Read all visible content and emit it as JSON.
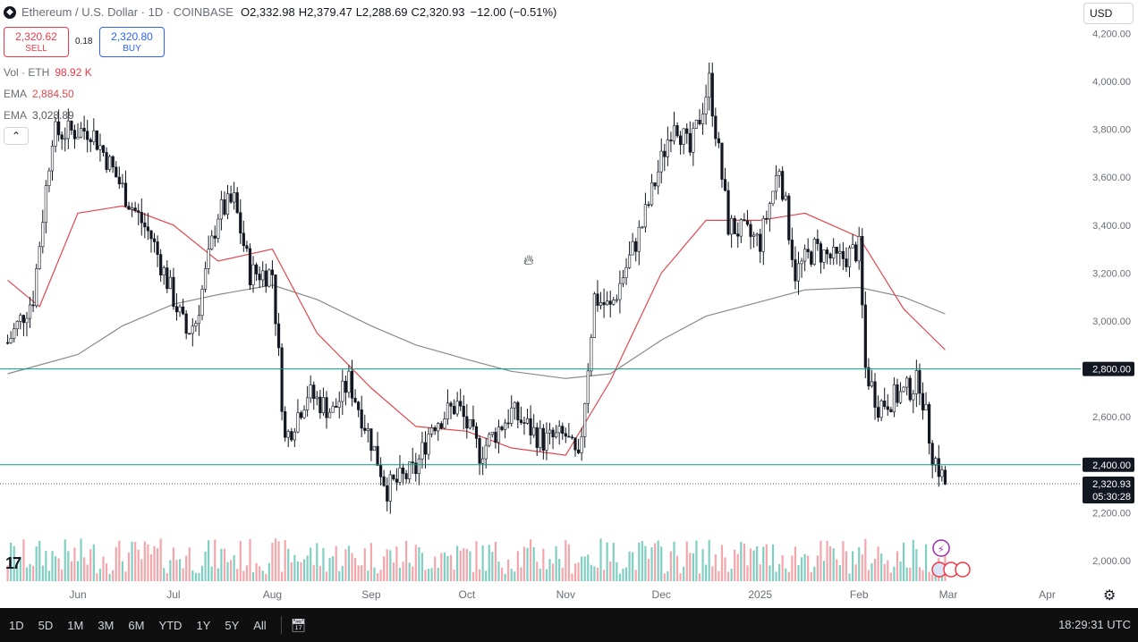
{
  "legend": {
    "title": "Ethereum / U.S. Dollar · 1D · COINBASE",
    "coin_icon": "ethereum-icon",
    "o_label": "O",
    "o": "2,332.98",
    "h_label": "H",
    "h": "2,379.47",
    "l_label": "L",
    "l": "2,288.69",
    "c_label": "C",
    "c": "2,320.93",
    "change": "−12.00 (−0.51%)"
  },
  "trade": {
    "sell_price": "2,320.62",
    "sell_label": "SELL",
    "spread": "0.18",
    "buy_price": "2,320.80",
    "buy_label": "BUY"
  },
  "indicators": {
    "vol_label": "Vol · ETH",
    "vol_value": "98.92 K",
    "ema1_label": "EMA",
    "ema1_value": "2,884.50",
    "ema2_label": "EMA",
    "ema2_value": "3,028.89",
    "collapse_label": "⌃"
  },
  "currency": "USD",
  "price_axis": {
    "ticks": [
      "4,200.00",
      "4,000.00",
      "3,800.00",
      "3,600.00",
      "3,400.00",
      "3,200.00",
      "3,000.00",
      "2,800.00",
      "2,600.00",
      "2,400.00",
      "2,200.00",
      "2,000.00"
    ]
  },
  "time_axis": {
    "labels": [
      "Jun",
      "Jul",
      "Aug",
      "Sep",
      "Oct",
      "Nov",
      "Dec",
      "2025",
      "Feb",
      "Mar",
      "Apr"
    ]
  },
  "price_labels": {
    "line1": "2,800.00",
    "line2": "2,400.00",
    "last": "2,320.93",
    "countdown": "05:30:28"
  },
  "colors": {
    "up": "#131722",
    "down": "#131722",
    "hline": "#089981",
    "ema_fast": "#e0484f",
    "ema_slow": "#8a8a8a",
    "vol_up": "#7fcfc3",
    "vol_down": "#f4a6ab",
    "label_bg": "#131722"
  },
  "bottom": {
    "timeframes": [
      "1D",
      "5D",
      "1M",
      "3M",
      "6M",
      "YTD",
      "1Y",
      "5Y",
      "All"
    ],
    "calendar_icon": "calendar-range-icon",
    "clock": "18:29:31 UTC"
  },
  "chart_data": {
    "type": "candlestick",
    "title": "Ethereum / U.S. Dollar · 1D · COINBASE",
    "xlabel": "",
    "ylabel": "",
    "ylim": [
      1930,
      4270
    ],
    "grid": false,
    "horizontal_levels": [
      2800,
      2400
    ],
    "last_price": 2320.93,
    "ema_fast": {
      "name": "EMA",
      "points": [
        [
          "2024-05-10",
          3170
        ],
        [
          "2024-05-20",
          3060
        ],
        [
          "2024-06-01",
          3450
        ],
        [
          "2024-06-15",
          3480
        ],
        [
          "2024-07-01",
          3400
        ],
        [
          "2024-07-15",
          3250
        ],
        [
          "2024-08-01",
          3300
        ],
        [
          "2024-08-15",
          2950
        ],
        [
          "2024-09-01",
          2720
        ],
        [
          "2024-09-15",
          2560
        ],
        [
          "2024-10-01",
          2540
        ],
        [
          "2024-10-15",
          2470
        ],
        [
          "2024-11-01",
          2440
        ],
        [
          "2024-11-15",
          2750
        ],
        [
          "2024-12-01",
          3200
        ],
        [
          "2024-12-15",
          3420
        ],
        [
          "2025-01-01",
          3420
        ],
        [
          "2025-01-15",
          3450
        ],
        [
          "2025-02-01",
          3350
        ],
        [
          "2025-02-15",
          3050
        ],
        [
          "2025-02-28",
          2880
        ]
      ]
    },
    "ema_slow": {
      "name": "EMA",
      "points": [
        [
          "2024-05-10",
          2780
        ],
        [
          "2024-06-01",
          2860
        ],
        [
          "2024-06-15",
          2980
        ],
        [
          "2024-07-01",
          3070
        ],
        [
          "2024-07-15",
          3110
        ],
        [
          "2024-08-01",
          3150
        ],
        [
          "2024-08-15",
          3090
        ],
        [
          "2024-09-01",
          2980
        ],
        [
          "2024-09-15",
          2900
        ],
        [
          "2024-10-01",
          2840
        ],
        [
          "2024-10-15",
          2790
        ],
        [
          "2024-11-01",
          2760
        ],
        [
          "2024-11-15",
          2780
        ],
        [
          "2024-12-01",
          2920
        ],
        [
          "2024-12-15",
          3020
        ],
        [
          "2025-01-01",
          3080
        ],
        [
          "2025-01-15",
          3130
        ],
        [
          "2025-02-01",
          3140
        ],
        [
          "2025-02-15",
          3100
        ],
        [
          "2025-02-28",
          3030
        ]
      ]
    },
    "candle_path": [
      [
        "2024-05-10",
        2910
      ],
      [
        "2024-05-18",
        3100
      ],
      [
        "2024-05-24",
        3780
      ],
      [
        "2024-06-05",
        3800
      ],
      [
        "2024-06-10",
        3680
      ],
      [
        "2024-06-17",
        3500
      ],
      [
        "2024-06-24",
        3350
      ],
      [
        "2024-07-05",
        2950
      ],
      [
        "2024-07-08",
        3000
      ],
      [
        "2024-07-15",
        3450
      ],
      [
        "2024-07-20",
        3500
      ],
      [
        "2024-07-25",
        3200
      ],
      [
        "2024-08-01",
        3200
      ],
      [
        "2024-08-05",
        2500
      ],
      [
        "2024-08-12",
        2700
      ],
      [
        "2024-08-20",
        2620
      ],
      [
        "2024-08-25",
        2750
      ],
      [
        "2024-09-01",
        2500
      ],
      [
        "2024-09-06",
        2300
      ],
      [
        "2024-09-15",
        2380
      ],
      [
        "2024-09-20",
        2570
      ],
      [
        "2024-09-28",
        2650
      ],
      [
        "2024-10-05",
        2450
      ],
      [
        "2024-10-15",
        2620
      ],
      [
        "2024-10-25",
        2500
      ],
      [
        "2024-11-01",
        2520
      ],
      [
        "2024-11-05",
        2400
      ],
      [
        "2024-11-10",
        3100
      ],
      [
        "2024-11-15",
        3050
      ],
      [
        "2024-11-25",
        3400
      ],
      [
        "2024-12-05",
        3850
      ],
      [
        "2024-12-10",
        3700
      ],
      [
        "2024-12-16",
        4000
      ],
      [
        "2024-12-22",
        3400
      ],
      [
        "2025-01-01",
        3330
      ],
      [
        "2025-01-07",
        3650
      ],
      [
        "2025-01-12",
        3200
      ],
      [
        "2025-01-18",
        3300
      ],
      [
        "2025-01-25",
        3250
      ],
      [
        "2025-02-01",
        3300
      ],
      [
        "2025-02-03",
        2800
      ],
      [
        "2025-02-07",
        2650
      ],
      [
        "2025-02-15",
        2700
      ],
      [
        "2025-02-20",
        2750
      ],
      [
        "2025-02-24",
        2450
      ],
      [
        "2025-02-28",
        2320
      ]
    ],
    "volume": {
      "name": "Vol · ETH",
      "last": "98.92 K"
    }
  }
}
